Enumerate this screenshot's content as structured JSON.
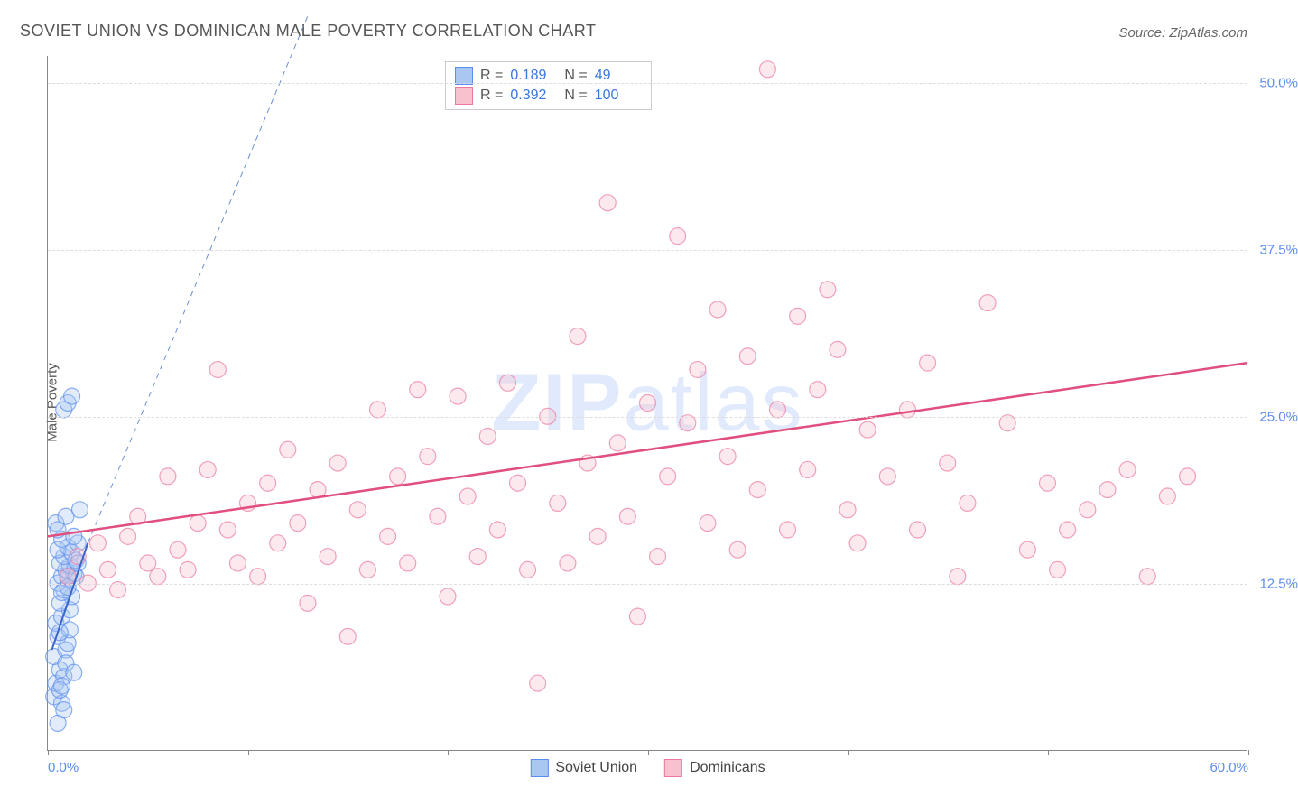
{
  "title": "SOVIET UNION VS DOMINICAN MALE POVERTY CORRELATION CHART",
  "source": "Source: ZipAtlas.com",
  "y_axis_label": "Male Poverty",
  "watermark": {
    "prefix": "ZIP",
    "suffix": "atlas"
  },
  "chart": {
    "type": "scatter",
    "xlim": [
      0,
      60
    ],
    "ylim": [
      0,
      52
    ],
    "x_ticks": [
      0,
      10,
      20,
      30,
      40,
      50,
      60
    ],
    "x_tick_labels": {
      "0": "0.0%",
      "60": "60.0%"
    },
    "y_ticks": [
      12.5,
      25.0,
      37.5,
      50.0
    ],
    "y_tick_labels": [
      "12.5%",
      "25.0%",
      "37.5%",
      "50.0%"
    ],
    "grid_color": "#dddddd",
    "background_color": "#ffffff",
    "marker_radius": 9,
    "marker_opacity": 0.35,
    "marker_stroke_opacity": 0.7,
    "series": [
      {
        "name": "Soviet Union",
        "color_fill": "#a9c7f0",
        "color_stroke": "#5b8def",
        "R": "0.189",
        "N": "49",
        "trend": {
          "x1": 0.2,
          "y1": 7.5,
          "x2": 2.0,
          "y2": 15.5,
          "stroke": "#3a66c7",
          "width": 2
        },
        "trend_ext": {
          "x1": 2.0,
          "y1": 15.5,
          "x2": 13.0,
          "y2": 55.0,
          "stroke": "#6a8fd0",
          "dash": "6,5",
          "width": 1
        },
        "points": [
          [
            0.3,
            4.0
          ],
          [
            0.5,
            2.0
          ],
          [
            0.7,
            3.5
          ],
          [
            0.4,
            5.0
          ],
          [
            0.6,
            6.0
          ],
          [
            0.8,
            5.5
          ],
          [
            0.3,
            7.0
          ],
          [
            0.9,
            7.5
          ],
          [
            0.5,
            8.5
          ],
          [
            1.0,
            8.0
          ],
          [
            0.4,
            9.5
          ],
          [
            0.7,
            10.0
          ],
          [
            1.1,
            10.5
          ],
          [
            0.6,
            11.0
          ],
          [
            1.2,
            11.5
          ],
          [
            0.8,
            12.0
          ],
          [
            0.5,
            12.5
          ],
          [
            1.0,
            12.8
          ],
          [
            0.7,
            13.0
          ],
          [
            1.3,
            13.2
          ],
          [
            0.9,
            13.5
          ],
          [
            1.1,
            13.8
          ],
          [
            0.6,
            14.0
          ],
          [
            1.4,
            14.2
          ],
          [
            0.8,
            14.5
          ],
          [
            1.2,
            14.8
          ],
          [
            0.5,
            15.0
          ],
          [
            1.0,
            15.2
          ],
          [
            1.5,
            15.5
          ],
          [
            0.7,
            15.8
          ],
          [
            1.3,
            16.0
          ],
          [
            0.4,
            17.0
          ],
          [
            0.9,
            17.5
          ],
          [
            1.6,
            18.0
          ],
          [
            0.8,
            25.5
          ],
          [
            1.0,
            26.0
          ],
          [
            1.2,
            26.5
          ],
          [
            0.6,
            4.5
          ],
          [
            0.9,
            6.5
          ],
          [
            1.1,
            9.0
          ],
          [
            0.7,
            11.8
          ],
          [
            1.4,
            13.0
          ],
          [
            0.5,
            16.5
          ],
          [
            0.8,
            3.0
          ],
          [
            1.3,
            5.8
          ],
          [
            0.6,
            8.8
          ],
          [
            1.0,
            12.2
          ],
          [
            1.5,
            14.0
          ],
          [
            0.7,
            4.8
          ]
        ]
      },
      {
        "name": "Dominicans",
        "color_fill": "#f7c1ce",
        "color_stroke": "#e97ba0",
        "R": "0.392",
        "N": "100",
        "trend": {
          "x1": 0,
          "y1": 16.0,
          "x2": 60,
          "y2": 29.0,
          "stroke": "#e04f7d",
          "width": 2.5
        },
        "points": [
          [
            1.0,
            13.0
          ],
          [
            1.5,
            14.5
          ],
          [
            2.0,
            12.5
          ],
          [
            2.5,
            15.5
          ],
          [
            3.0,
            13.5
          ],
          [
            3.5,
            12.0
          ],
          [
            4.0,
            16.0
          ],
          [
            4.5,
            17.5
          ],
          [
            5.0,
            14.0
          ],
          [
            5.5,
            13.0
          ],
          [
            6.0,
            20.5
          ],
          [
            6.5,
            15.0
          ],
          [
            7.0,
            13.5
          ],
          [
            7.5,
            17.0
          ],
          [
            8.0,
            21.0
          ],
          [
            8.5,
            28.5
          ],
          [
            9.0,
            16.5
          ],
          [
            9.5,
            14.0
          ],
          [
            10.0,
            18.5
          ],
          [
            10.5,
            13.0
          ],
          [
            11.0,
            20.0
          ],
          [
            11.5,
            15.5
          ],
          [
            12.0,
            22.5
          ],
          [
            12.5,
            17.0
          ],
          [
            13.0,
            11.0
          ],
          [
            13.5,
            19.5
          ],
          [
            14.0,
            14.5
          ],
          [
            14.5,
            21.5
          ],
          [
            15.0,
            8.5
          ],
          [
            15.5,
            18.0
          ],
          [
            16.0,
            13.5
          ],
          [
            16.5,
            25.5
          ],
          [
            17.0,
            16.0
          ],
          [
            17.5,
            20.5
          ],
          [
            18.0,
            14.0
          ],
          [
            18.5,
            27.0
          ],
          [
            19.0,
            22.0
          ],
          [
            19.5,
            17.5
          ],
          [
            20.0,
            11.5
          ],
          [
            20.5,
            26.5
          ],
          [
            21.0,
            19.0
          ],
          [
            21.5,
            14.5
          ],
          [
            22.0,
            23.5
          ],
          [
            22.5,
            16.5
          ],
          [
            23.0,
            27.5
          ],
          [
            23.5,
            20.0
          ],
          [
            24.0,
            13.5
          ],
          [
            24.5,
            5.0
          ],
          [
            25.0,
            25.0
          ],
          [
            25.5,
            18.5
          ],
          [
            26.0,
            14.0
          ],
          [
            26.5,
            31.0
          ],
          [
            27.0,
            21.5
          ],
          [
            27.5,
            16.0
          ],
          [
            28.0,
            41.0
          ],
          [
            28.5,
            23.0
          ],
          [
            29.0,
            17.5
          ],
          [
            29.5,
            10.0
          ],
          [
            30.0,
            26.0
          ],
          [
            30.5,
            14.5
          ],
          [
            31.0,
            20.5
          ],
          [
            31.5,
            38.5
          ],
          [
            32.0,
            24.5
          ],
          [
            32.5,
            28.5
          ],
          [
            33.0,
            17.0
          ],
          [
            33.5,
            33.0
          ],
          [
            34.0,
            22.0
          ],
          [
            34.5,
            15.0
          ],
          [
            35.0,
            29.5
          ],
          [
            35.5,
            19.5
          ],
          [
            36.0,
            51.0
          ],
          [
            36.5,
            25.5
          ],
          [
            37.0,
            16.5
          ],
          [
            37.5,
            32.5
          ],
          [
            38.0,
            21.0
          ],
          [
            38.5,
            27.0
          ],
          [
            39.0,
            34.5
          ],
          [
            39.5,
            30.0
          ],
          [
            40.0,
            18.0
          ],
          [
            40.5,
            15.5
          ],
          [
            41.0,
            24.0
          ],
          [
            42.0,
            20.5
          ],
          [
            43.0,
            25.5
          ],
          [
            43.5,
            16.5
          ],
          [
            44.0,
            29.0
          ],
          [
            45.0,
            21.5
          ],
          [
            45.5,
            13.0
          ],
          [
            46.0,
            18.5
          ],
          [
            47.0,
            33.5
          ],
          [
            48.0,
            24.5
          ],
          [
            49.0,
            15.0
          ],
          [
            50.0,
            20.0
          ],
          [
            50.5,
            13.5
          ],
          [
            51.0,
            16.5
          ],
          [
            52.0,
            18.0
          ],
          [
            53.0,
            19.5
          ],
          [
            54.0,
            21.0
          ],
          [
            55.0,
            13.0
          ],
          [
            56.0,
            19.0
          ],
          [
            57.0,
            20.5
          ]
        ]
      }
    ],
    "legend_top_labels": {
      "R": "R =",
      "N": "N ="
    },
    "legend_bottom": [
      {
        "swatch_fill": "#a9c7f0",
        "swatch_stroke": "#5b8def",
        "label": "Soviet Union"
      },
      {
        "swatch_fill": "#f7c1ce",
        "swatch_stroke": "#e97ba0",
        "label": "Dominicans"
      }
    ]
  }
}
